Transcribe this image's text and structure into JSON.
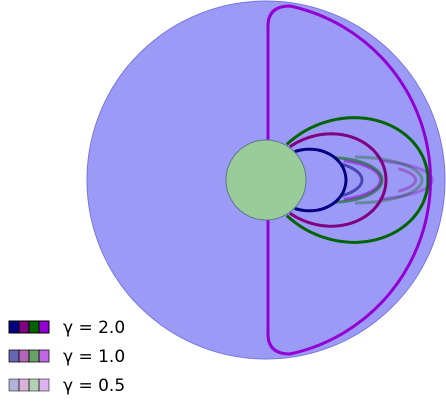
{
  "legend": {
    "colors": [
      "#000080",
      "#800080",
      "#006400",
      "#9400d3"
    ],
    "entries": [
      {
        "label": "γ = 2.0",
        "opacity": 1.0
      },
      {
        "label": "γ = 1.0",
        "opacity": 0.6
      },
      {
        "label": "γ = 0.5",
        "opacity": 0.3
      }
    ]
  }
}
